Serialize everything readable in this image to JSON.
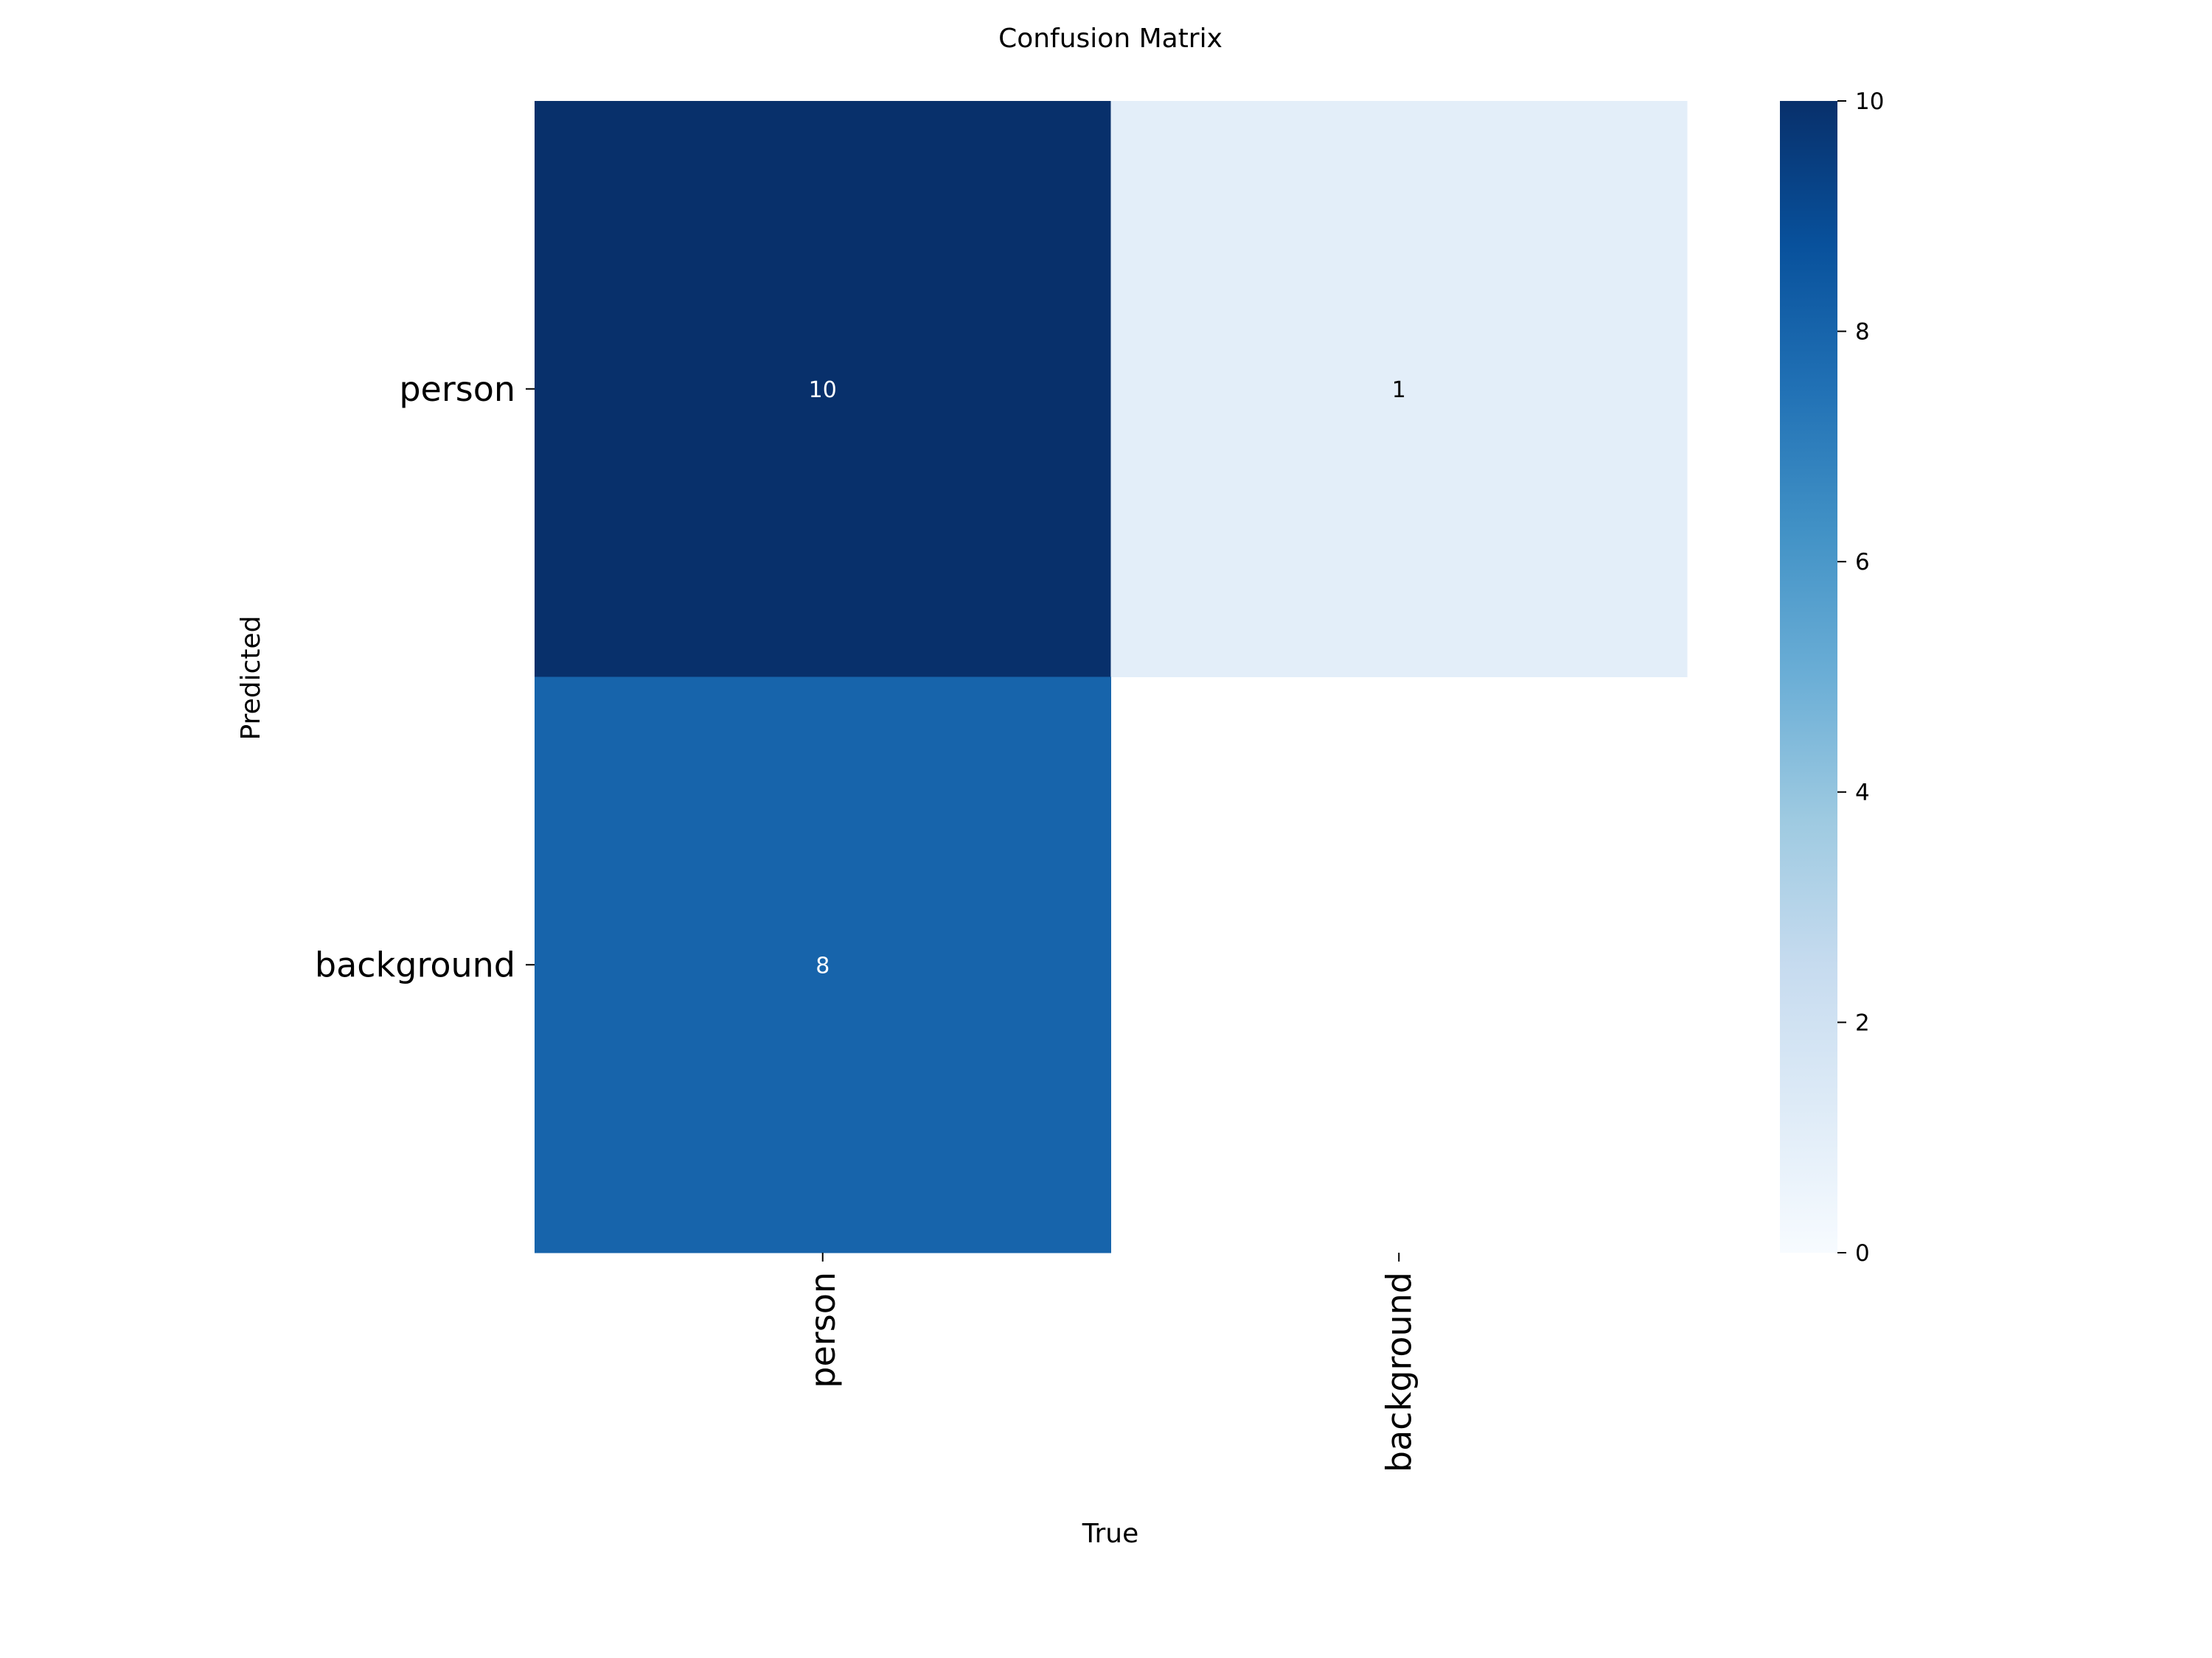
{
  "chart_data": {
    "type": "heatmap",
    "title": "Confusion Matrix",
    "xlabel": "True",
    "ylabel": "Predicted",
    "x_categories": [
      "person",
      "background"
    ],
    "y_categories": [
      "person",
      "background"
    ],
    "values": [
      [
        10,
        1
      ],
      [
        8,
        null
      ]
    ],
    "cell_labels": [
      [
        "10",
        "1"
      ],
      [
        "8",
        ""
      ]
    ],
    "colormap": "Blues",
    "vmin": 0,
    "vmax": 10,
    "colorbar_ticks": [
      "0",
      "2",
      "4",
      "6",
      "8",
      "10"
    ],
    "colors": {
      "low": "#f7fbff",
      "high": "#08306b"
    }
  }
}
